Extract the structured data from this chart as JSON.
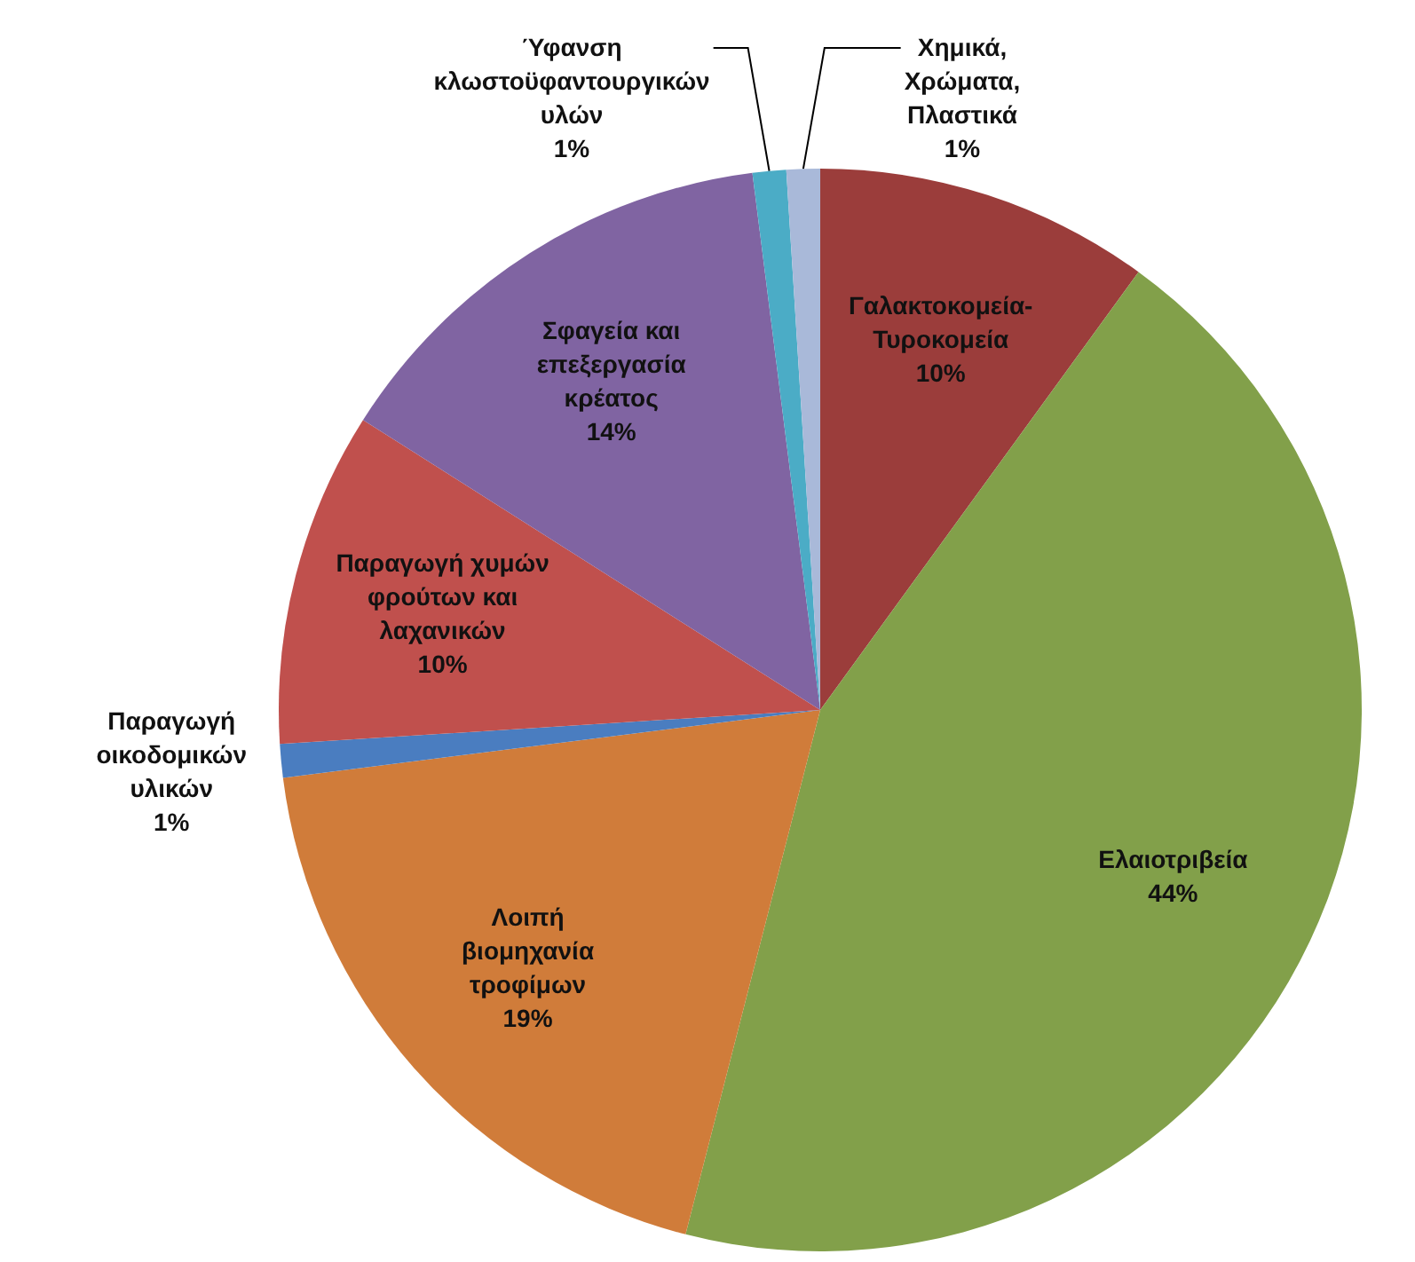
{
  "chart_data": {
    "type": "pie",
    "categories": [
      "Γαλακτοκομεία-Τυροκομεία",
      "Ελαιοτριβεία",
      "Λοιπή βιομηχανία τροφίμων",
      "Παραγωγή οικοδομικών υλικών",
      "Παραγωγή χυμών φρούτων και λαχανικών",
      "Σφαγεία και επεξεργασία κρέατος",
      "Ύφανση κλωστοϋφαντουργικών υλών",
      "Χημικά, Χρώματα, Πλαστικά"
    ],
    "values": [
      10,
      44,
      19,
      1,
      10,
      14,
      1,
      1
    ],
    "colors": [
      "#9b3d3b",
      "#82a04a",
      "#d07c3a",
      "#4a7dc0",
      "#c0504d",
      "#8064a2",
      "#4bacc6",
      "#a9b9d9"
    ],
    "value_labels": [
      "10%",
      "44%",
      "19%",
      "1%",
      "10%",
      "14%",
      "1%",
      "1%"
    ],
    "legend": false
  }
}
